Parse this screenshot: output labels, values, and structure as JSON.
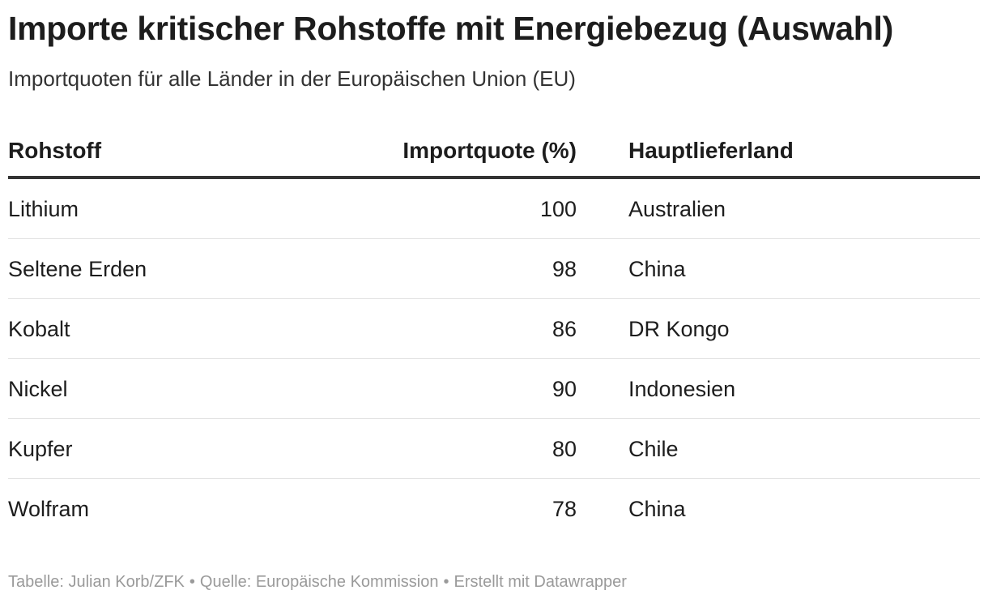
{
  "title": "Importe kritischer Rohstoffe mit Energiebezug (Auswahl)",
  "subtitle": "Importquoten für alle Länder in der Europäischen Union (EU)",
  "chart_data": {
    "type": "table",
    "columns": [
      "Rohstoff",
      "Importquote (%)",
      "Hauptlieferland"
    ],
    "rows": [
      {
        "rohstoff": "Lithium",
        "importquote": "100",
        "hauptlieferland": "Australien"
      },
      {
        "rohstoff": "Seltene Erden",
        "importquote": "98",
        "hauptlieferland": "China"
      },
      {
        "rohstoff": "Kobalt",
        "importquote": "86",
        "hauptlieferland": "DR Kongo"
      },
      {
        "rohstoff": "Nickel",
        "importquote": "90",
        "hauptlieferland": "Indonesien"
      },
      {
        "rohstoff": "Kupfer",
        "importquote": "80",
        "hauptlieferland": "Chile"
      },
      {
        "rohstoff": "Wolfram",
        "importquote": "78",
        "hauptlieferland": "China"
      }
    ]
  },
  "footer": {
    "credit": "Tabelle: Julian Korb/ZFK",
    "source": "Quelle: Europäische Kommission",
    "tool": "Erstellt mit Datawrapper",
    "separator": "•"
  }
}
